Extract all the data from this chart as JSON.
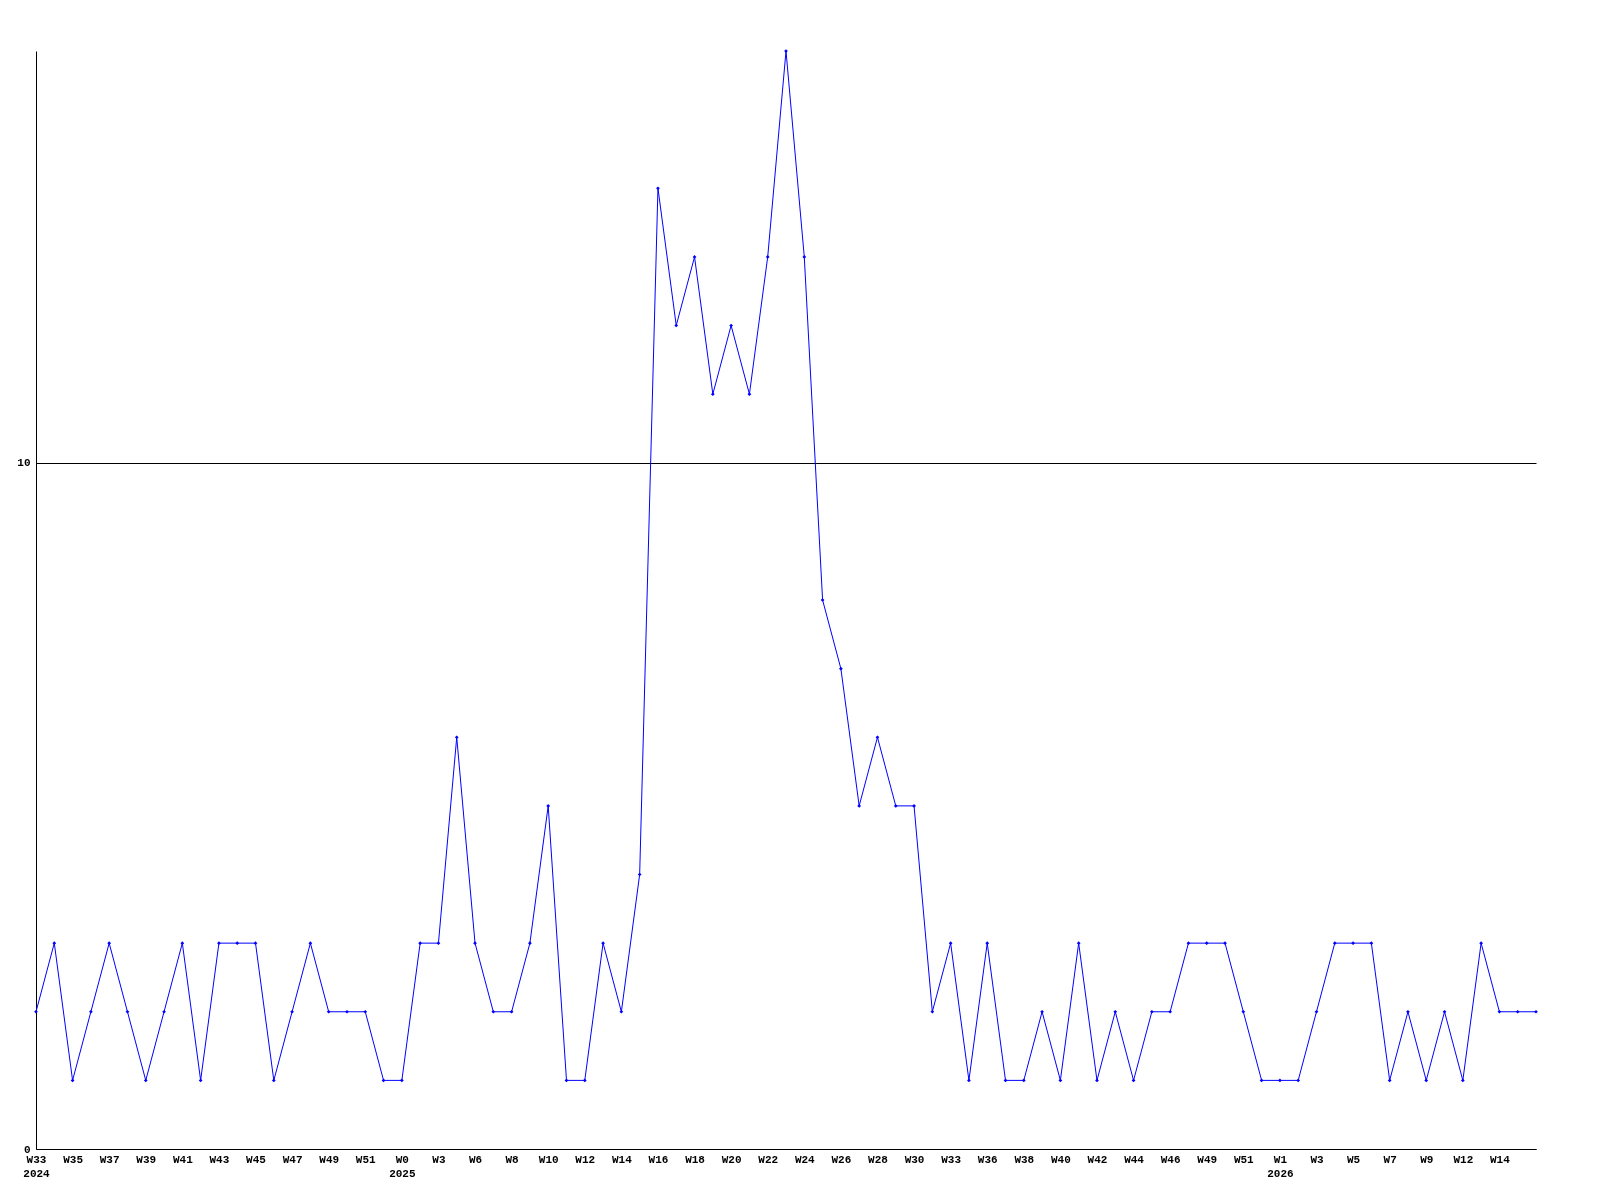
{
  "chart_data": {
    "type": "line",
    "categories": [
      "W33\n2024",
      null,
      "W35",
      null,
      "W37",
      null,
      "W39",
      null,
      "W41",
      null,
      "W43",
      null,
      "W45",
      null,
      "W47",
      null,
      "W49",
      null,
      "W51",
      null,
      "W0\n2025",
      null,
      "W3",
      null,
      "W6",
      null,
      "W8",
      null,
      "W10",
      null,
      "W12",
      null,
      "W14",
      null,
      "W16",
      null,
      "W18",
      null,
      "W20",
      null,
      "W22",
      null,
      "W24",
      null,
      "W26",
      null,
      "W28",
      null,
      "W30",
      null,
      "W33",
      null,
      "W36",
      null,
      "W38",
      null,
      "W40",
      null,
      "W42",
      null,
      "W44",
      null,
      "W46",
      null,
      "W49",
      null,
      "W51",
      null,
      "W1\n2026",
      null,
      "W3",
      null,
      "W5",
      null,
      "W7",
      null,
      "W9",
      null,
      "W12",
      null,
      "W14",
      null,
      null
    ],
    "series": [
      {
        "color": "#0000ff",
        "values": [
          2,
          3,
          1,
          2,
          3,
          2,
          1,
          2,
          3,
          1,
          3,
          3,
          3,
          1,
          2,
          3,
          2,
          2,
          2,
          1,
          1,
          3,
          3,
          6,
          3,
          2,
          2,
          3,
          5,
          1,
          1,
          3,
          2,
          4,
          14,
          12,
          13,
          11,
          12,
          11,
          13,
          16,
          13,
          8,
          7,
          5,
          6,
          5,
          5,
          2,
          3,
          1,
          3,
          1,
          1,
          2,
          1,
          3,
          1,
          2,
          1,
          2,
          2,
          3,
          3,
          3,
          2,
          1,
          1,
          1,
          2,
          3,
          3,
          3,
          1,
          2,
          1,
          2,
          1,
          3,
          2,
          2,
          2
        ]
      }
    ],
    "ylim": [
      0,
      16
    ],
    "yticks": [
      0,
      10
    ],
    "grid": "y",
    "marker": "diamond"
  }
}
